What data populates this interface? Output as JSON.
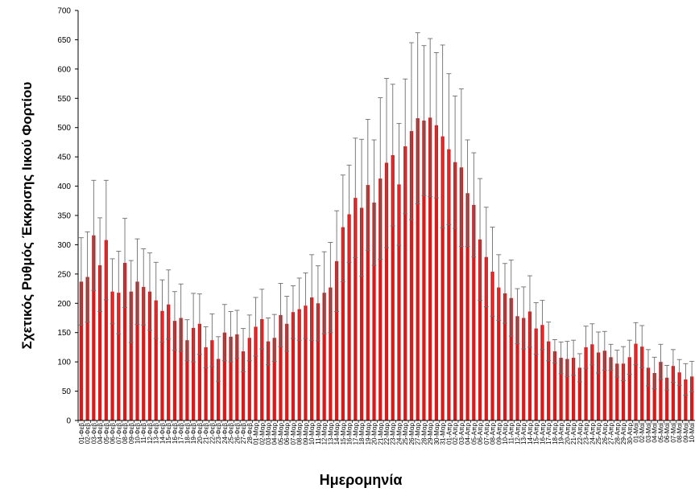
{
  "chart_data": {
    "type": "bar",
    "title": "",
    "xlabel": "Ημερομηνία",
    "ylabel": "Σχετικός Ρυθμός Έκκρισης Ιικού Φορτίου",
    "ylim": [
      0,
      700
    ],
    "yticks": [
      0,
      50,
      100,
      150,
      200,
      250,
      300,
      350,
      400,
      450,
      500,
      550,
      600,
      650,
      700
    ],
    "grid": false,
    "legend": "none",
    "bar_color": "#d91a1a",
    "error_color": "#6e6e6e",
    "categories": [
      "01-Φεβ",
      "02-Φεβ",
      "03-Φεβ",
      "04-Φεβ",
      "05-Φεβ",
      "06-Φεβ",
      "07-Φεβ",
      "08-Φεβ",
      "09-Φεβ",
      "10-Φεβ",
      "11-Φεβ",
      "12-Φεβ",
      "13-Φεβ",
      "14-Φεβ",
      "15-Φεβ",
      "16-Φεβ",
      "17-Φεβ",
      "18-Φεβ",
      "19-Φεβ",
      "20-Φεβ",
      "21-Φεβ",
      "22-Φεβ",
      "23-Φεβ",
      "24-Φεβ",
      "25-Φεβ",
      "26-Φεβ",
      "27-Φεβ",
      "28-Φεβ",
      "01-Μαρ",
      "02-Μαρ",
      "03-Μαρ",
      "04-Μαρ",
      "05-Μαρ",
      "06-Μαρ",
      "07-Μαρ",
      "08-Μαρ",
      "09-Μαρ",
      "10-Μαρ",
      "11-Μαρ",
      "12-Μαρ",
      "13-Μαρ",
      "14-Μαρ",
      "15-Μαρ",
      "16-Μαρ",
      "17-Μαρ",
      "18-Μαρ",
      "19-Μαρ",
      "20-Μαρ",
      "21-Μαρ",
      "22-Μαρ",
      "23-Μαρ",
      "24-Μαρ",
      "25-Μαρ",
      "26-Μαρ",
      "27-Μαρ",
      "28-Μαρ",
      "29-Μαρ",
      "30-Μαρ",
      "31-Μαρ",
      "01-Απρ",
      "02-Απρ",
      "03-Απρ",
      "04-Απρ",
      "05-Απρ",
      "06-Απρ",
      "07-Απρ",
      "08-Απρ",
      "09-Απρ",
      "10-Απρ",
      "11-Απρ",
      "12-Απρ",
      "13-Απρ",
      "14-Απρ",
      "15-Απρ",
      "16-Απρ",
      "17-Απρ",
      "18-Απρ",
      "19-Απρ",
      "20-Απρ",
      "21-Απρ",
      "22-Απρ",
      "23-Απρ",
      "24-Απρ",
      "25-Απρ",
      "26-Απρ",
      "27-Απρ",
      "28-Απρ",
      "29-Απρ",
      "30-Απρ",
      "01-Μαϊ",
      "02-Μαϊ",
      "03-Μαϊ",
      "04-Μαϊ",
      "05-Μαϊ",
      "06-Μαϊ",
      "07-Μαϊ",
      "08-Μαϊ",
      "09-Μαϊ",
      "10-Μαϊ"
    ],
    "values": [
      237,
      245,
      316,
      265,
      308,
      220,
      218,
      269,
      220,
      237,
      228,
      220,
      205,
      187,
      198,
      170,
      175,
      137,
      158,
      165,
      125,
      137,
      105,
      150,
      143,
      147,
      118,
      141,
      160,
      173,
      135,
      141,
      180,
      165,
      185,
      190,
      196,
      210,
      200,
      218,
      227,
      272,
      330,
      352,
      380,
      363,
      402,
      372,
      413,
      440,
      453,
      403,
      468,
      494,
      516,
      512,
      517,
      504,
      485,
      463,
      441,
      432,
      388,
      368,
      309,
      279,
      254,
      227,
      217,
      209,
      178,
      175,
      186,
      157,
      163,
      135,
      118,
      107,
      105,
      107,
      90,
      125,
      130,
      116,
      119,
      108,
      97,
      97,
      108,
      131,
      126,
      90,
      81,
      100,
      73,
      93,
      82,
      70,
      75
    ],
    "error_upper": [
      312,
      322,
      410,
      346,
      410,
      276,
      289,
      345,
      273,
      310,
      293,
      286,
      270,
      240,
      257,
      220,
      233,
      172,
      217,
      216,
      160,
      182,
      143,
      198,
      186,
      188,
      157,
      180,
      210,
      224,
      175,
      181,
      234,
      212,
      230,
      243,
      252,
      283,
      264,
      288,
      304,
      358,
      419,
      436,
      482,
      480,
      514,
      479,
      551,
      584,
      574,
      507,
      583,
      645,
      662,
      640,
      652,
      628,
      641,
      592,
      554,
      566,
      479,
      457,
      413,
      364,
      330,
      283,
      268,
      274,
      225,
      228,
      247,
      201,
      205,
      168,
      138,
      134,
      135,
      137,
      114,
      161,
      165,
      151,
      152,
      130,
      120,
      126,
      137,
      167,
      162,
      121,
      108,
      130,
      94,
      121,
      104,
      97,
      101
    ],
    "error_lower": [
      163,
      168,
      222,
      186,
      206,
      165,
      148,
      193,
      133,
      164,
      163,
      154,
      140,
      134,
      139,
      120,
      118,
      102,
      100,
      113,
      90,
      92,
      67,
      102,
      100,
      106,
      83,
      102,
      110,
      122,
      95,
      101,
      126,
      118,
      140,
      137,
      140,
      137,
      136,
      148,
      150,
      186,
      237,
      270,
      278,
      246,
      290,
      265,
      275,
      295,
      332,
      299,
      353,
      343,
      370,
      384,
      382,
      380,
      329,
      334,
      328,
      297,
      297,
      279,
      205,
      194,
      178,
      171,
      166,
      144,
      131,
      122,
      125,
      113,
      121,
      102,
      98,
      80,
      75,
      77,
      66,
      89,
      95,
      81,
      86,
      86,
      74,
      68,
      79,
      95,
      90,
      59,
      54,
      70,
      52,
      65,
      60,
      43,
      49
    ]
  }
}
